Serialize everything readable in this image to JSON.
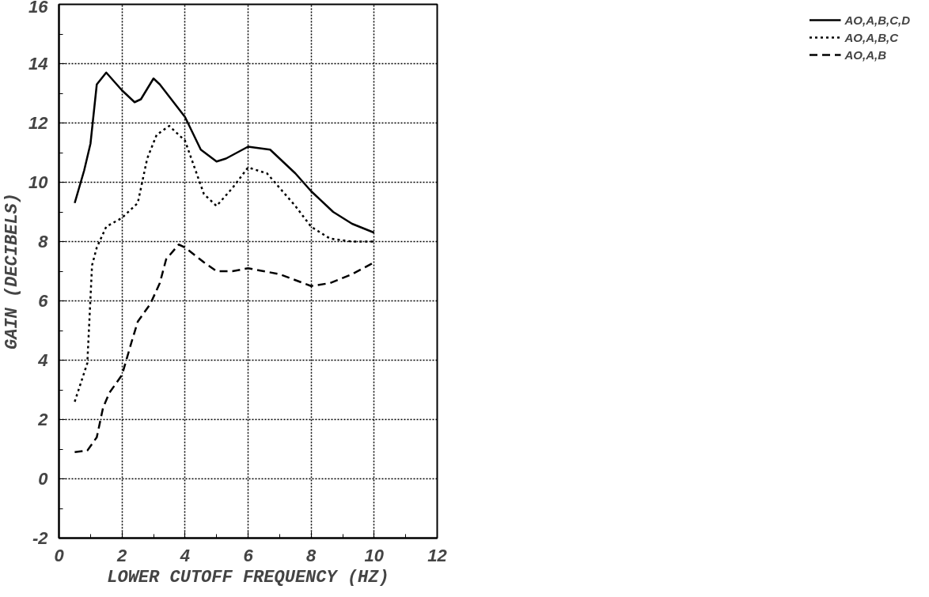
{
  "chart_data": {
    "type": "line",
    "xlabel": "LOWER CUTOFF FREQUENCY (HZ)",
    "ylabel": "GAIN (DECIBELS)",
    "xlim": [
      0,
      12
    ],
    "xticks": [
      0,
      2,
      4,
      6,
      8,
      10,
      12
    ],
    "ylim": [
      -2,
      16
    ],
    "yticks": [
      -2,
      0,
      2,
      4,
      6,
      8,
      10,
      12,
      14,
      16
    ],
    "grid": true,
    "legend": "right",
    "marker": "none",
    "series": [
      {
        "name": "AO,A,B,C,D",
        "color": "#000000",
        "line_style": "solid",
        "x": [
          0.5,
          0.8,
          1.0,
          1.2,
          1.5,
          2.0,
          2.4,
          2.6,
          3.0,
          3.2,
          4.0,
          4.5,
          5.0,
          5.3,
          6.0,
          6.7,
          7.5,
          8.0,
          8.7,
          9.3,
          10.0
        ],
        "values": [
          9.3,
          10.4,
          11.3,
          13.3,
          13.7,
          13.1,
          12.7,
          12.8,
          13.5,
          13.3,
          12.2,
          11.1,
          10.7,
          10.8,
          11.2,
          11.1,
          10.3,
          9.7,
          9.0,
          8.6,
          8.3
        ]
      },
      {
        "name": "AO,A,B,C",
        "color": "#000000",
        "line_style": "dotted",
        "x": [
          0.5,
          0.9,
          1.05,
          1.2,
          1.5,
          2.0,
          2.5,
          2.8,
          3.1,
          3.5,
          4.0,
          4.3,
          4.6,
          5.0,
          5.5,
          6.0,
          6.6,
          7.5,
          8.0,
          8.6,
          9.3,
          10.0
        ],
        "values": [
          2.6,
          3.9,
          7.2,
          7.8,
          8.5,
          8.8,
          9.3,
          10.8,
          11.6,
          11.9,
          11.4,
          10.5,
          9.6,
          9.2,
          9.8,
          10.5,
          10.3,
          9.2,
          8.5,
          8.1,
          8.0,
          8.0
        ]
      },
      {
        "name": "AO,A,B",
        "color": "#000000",
        "line_style": "dashed",
        "x": [
          0.5,
          0.9,
          1.2,
          1.4,
          1.6,
          2.0,
          2.3,
          2.5,
          2.9,
          3.2,
          3.4,
          3.8,
          4.0,
          4.6,
          5.0,
          5.5,
          6.0,
          7.0,
          8.0,
          8.6,
          9.3,
          10.0
        ],
        "values": [
          0.9,
          0.95,
          1.4,
          2.4,
          2.9,
          3.5,
          4.6,
          5.3,
          5.9,
          6.6,
          7.4,
          7.9,
          7.8,
          7.3,
          7.0,
          7.0,
          7.1,
          6.9,
          6.5,
          6.6,
          6.9,
          7.3
        ]
      }
    ]
  }
}
